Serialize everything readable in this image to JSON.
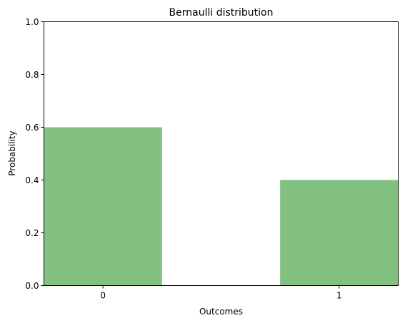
{
  "chart_data": {
    "type": "bar",
    "title": "Bernaulli distribution",
    "xlabel": "Outcomes",
    "ylabel": "Probability",
    "categories": [
      "0",
      "1"
    ],
    "values": [
      0.6,
      0.4
    ],
    "ylim": [
      0,
      1
    ],
    "yticks": [
      "0.0",
      "0.2",
      "0.4",
      "0.6",
      "0.8",
      "1.0"
    ],
    "bar_color": "#81c07f",
    "grid": false,
    "legend": "none"
  }
}
